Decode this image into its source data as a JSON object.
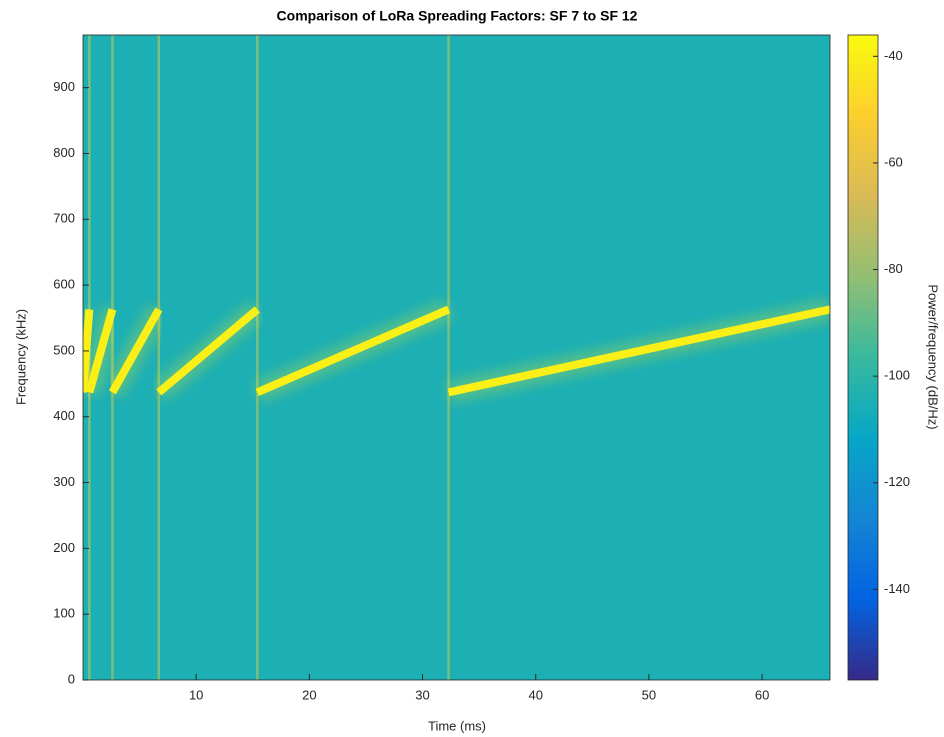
{
  "chart_data": {
    "type": "spectrogram",
    "title": "Comparison of LoRa Spreading Factors: SF 7 to SF 12",
    "xlabel": "Time (ms)",
    "ylabel": "Frequency (kHz)",
    "xlim": [
      0,
      66
    ],
    "xticks": [
      10,
      20,
      30,
      40,
      50,
      60
    ],
    "ylim": [
      0,
      980
    ],
    "yticks": [
      0,
      100,
      200,
      300,
      400,
      500,
      600,
      700,
      800,
      900
    ],
    "background_db": -105,
    "boundary_db": -85,
    "chirp_db": -40,
    "boundaries": [
      0.56,
      2.6,
      6.7,
      15.4,
      32.3
    ],
    "chirps": [
      {
        "t": [
          0,
          0.56
        ],
        "f": [
          437,
          563
        ]
      },
      {
        "t": [
          0.56,
          2.6
        ],
        "f": [
          437,
          563
        ]
      },
      {
        "t": [
          2.6,
          6.7
        ],
        "f": [
          437,
          563
        ]
      },
      {
        "t": [
          6.7,
          15.4
        ],
        "f": [
          437,
          563
        ]
      },
      {
        "t": [
          15.4,
          32.3
        ],
        "f": [
          437,
          563
        ]
      },
      {
        "t": [
          32.3,
          66
        ],
        "f": [
          437,
          563
        ]
      }
    ],
    "clim": [
      -157,
      -36
    ],
    "cticks": [
      -40,
      -60,
      -80,
      -100,
      -120,
      -140
    ],
    "clabel": "Power/frequency (dB/Hz)"
  }
}
